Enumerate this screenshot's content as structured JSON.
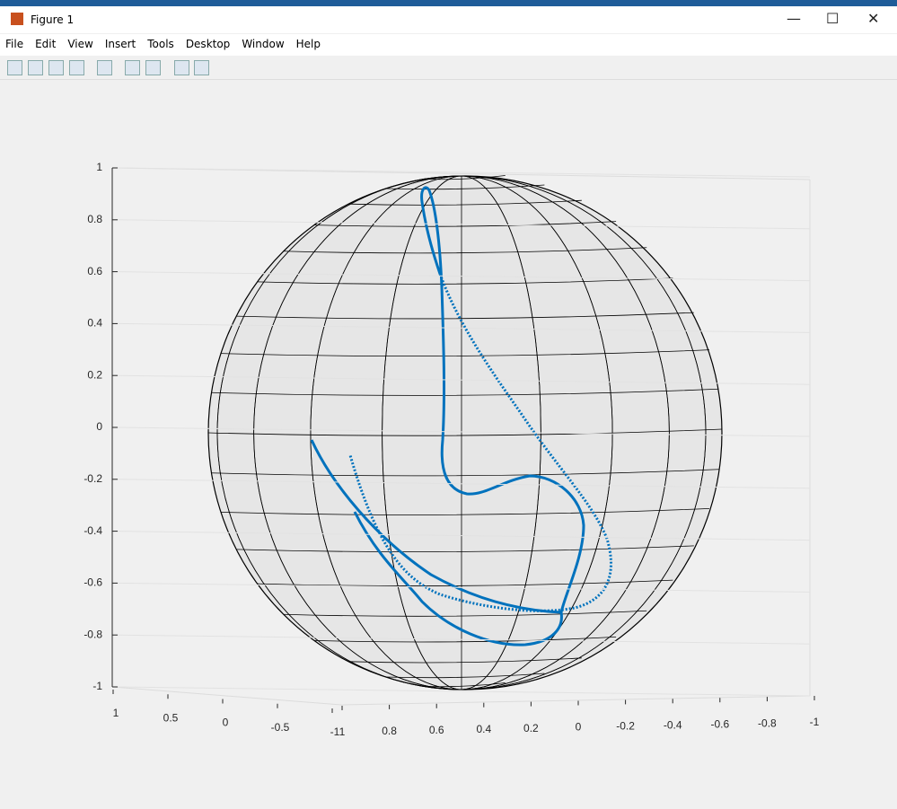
{
  "window": {
    "title": "Figure 1",
    "menu": [
      "File",
      "Edit",
      "View",
      "Insert",
      "Tools",
      "Desktop",
      "Window",
      "Help"
    ]
  },
  "axes": {
    "zticks": [
      1,
      0.8,
      0.6,
      0.4,
      0.2,
      0,
      -0.2,
      -0.4,
      -0.6,
      -0.8,
      -1
    ],
    "xticks": [
      1,
      0.5,
      0,
      -0.5,
      -1
    ],
    "yticks": [
      1,
      0.8,
      0.6,
      0.4,
      0.2,
      0,
      -0.2,
      -0.4,
      -0.6,
      -0.8,
      -1
    ]
  }
}
